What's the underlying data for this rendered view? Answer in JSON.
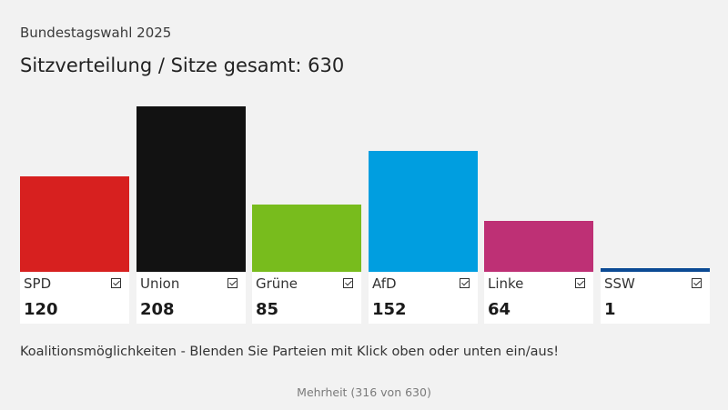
{
  "header": {
    "kicker": "Bundestagswahl 2025",
    "title": "Sitzverteilung / Sitze gesamt: 630"
  },
  "chart_data": {
    "type": "bar",
    "title": "Sitzverteilung / Sitze gesamt: 630",
    "categories": [
      "SPD",
      "Union",
      "Grüne",
      "AfD",
      "Linke",
      "SSW"
    ],
    "values": [
      120,
      208,
      85,
      152,
      64,
      1
    ],
    "display_values": [
      "120",
      "208",
      "85",
      "152",
      "64",
      "1"
    ],
    "colors": [
      "#d7201f",
      "#121212",
      "#78bc1d",
      "#009ee0",
      "#be3075",
      "#0b4a94"
    ],
    "checked": [
      true,
      true,
      true,
      true,
      true,
      true
    ],
    "total": 630,
    "legend": "none",
    "grid": false
  },
  "footer": {
    "coalition_text": "Koalitionsmöglichkeiten - Blenden Sie Parteien mit Klick oben oder unten ein/aus!",
    "majority_text": "Mehrheit (316 von 630)"
  }
}
